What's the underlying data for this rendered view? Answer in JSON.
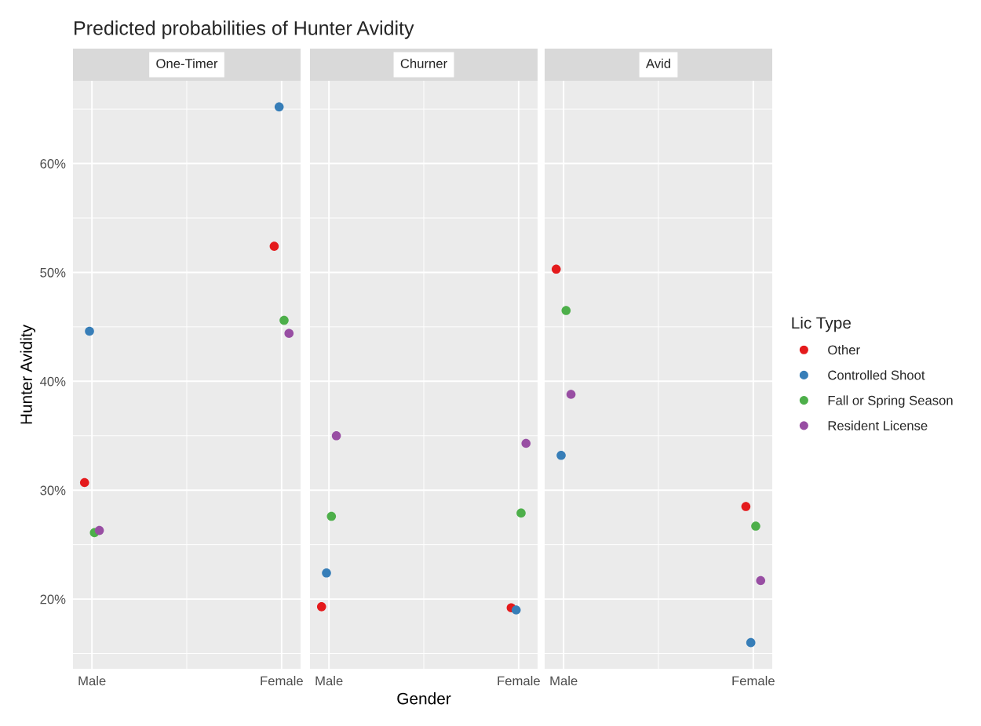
{
  "chart_data": [
    {
      "type": "scatter",
      "title": "Predicted probabilities of Hunter Avidity",
      "subtitle": "One-Timer",
      "ylabel": "Hunter Avidity",
      "categories": [
        "Male",
        "Female"
      ],
      "ylim": [
        13.6,
        67.6
      ],
      "yticks": [
        {
          "value": 20,
          "label": "20%"
        },
        {
          "value": 30,
          "label": "30%"
        },
        {
          "value": 40,
          "label": "40%"
        },
        {
          "value": 50,
          "label": "50%"
        },
        {
          "value": 60,
          "label": "60%"
        }
      ],
      "grid": true,
      "marker": "circle",
      "series": [
        {
          "color": "#e41a1c",
          "values": [
            30.7,
            52.4
          ]
        },
        {
          "color": "#377eb8",
          "values": [
            44.6,
            65.2
          ]
        },
        {
          "color": "#4daf4a",
          "values": [
            26.1,
            45.6
          ]
        },
        {
          "color": "#984ea3",
          "values": [
            26.3,
            44.4
          ]
        }
      ]
    },
    {
      "type": "scatter",
      "subtitle": "Churner",
      "xlabel": "Gender",
      "categories": [
        "Male",
        "Female"
      ],
      "ylim": [
        13.6,
        67.6
      ],
      "tick_labels": "x",
      "grid": true,
      "marker": "circle",
      "series": [
        {
          "color": "#e41a1c",
          "values": [
            19.3,
            19.2
          ]
        },
        {
          "color": "#377eb8",
          "values": [
            22.4,
            19.0
          ]
        },
        {
          "color": "#4daf4a",
          "values": [
            27.6,
            27.9
          ]
        },
        {
          "color": "#984ea3",
          "values": [
            35.0,
            34.3
          ]
        }
      ]
    },
    {
      "type": "scatter",
      "subtitle": "Avid",
      "legend_title": "Lic Type",
      "categories": [
        "Male",
        "Female"
      ],
      "ylim": [
        13.6,
        67.6
      ],
      "tick_labels": "x",
      "grid": true,
      "legend": "right",
      "marker": "circle",
      "series": [
        {
          "name": "Other",
          "color": "#e41a1c",
          "values": [
            50.3,
            28.5
          ]
        },
        {
          "name": "Controlled Shoot",
          "color": "#377eb8",
          "values": [
            33.2,
            16.0
          ]
        },
        {
          "name": "Fall or Spring Season",
          "color": "#4daf4a",
          "values": [
            46.5,
            26.7
          ]
        },
        {
          "name": "Resident License",
          "color": "#984ea3",
          "values": [
            38.8,
            21.7
          ]
        }
      ]
    }
  ]
}
